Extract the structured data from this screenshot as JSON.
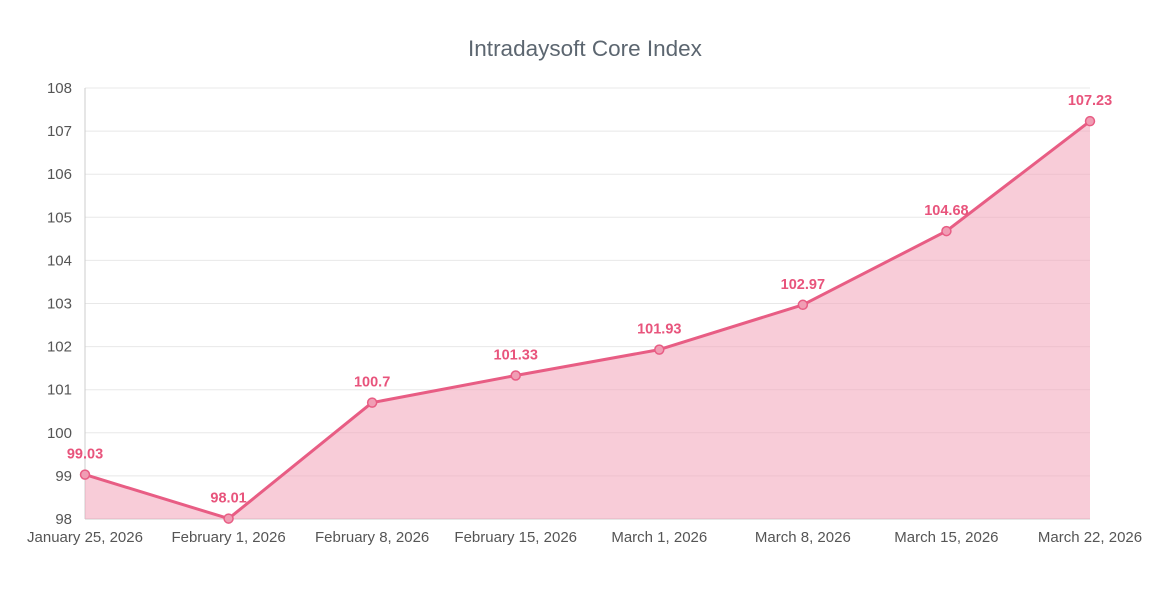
{
  "title": "Intradaysoft Core Index",
  "chart_data": {
    "type": "area",
    "title": "Intradaysoft Core Index",
    "categories": [
      "January 25, 2026",
      "February 1, 2026",
      "February 8, 2026",
      "February 15, 2026",
      "March 1, 2026",
      "March 8, 2026",
      "March 15, 2026",
      "March 22, 2026"
    ],
    "values": [
      99.03,
      98.01,
      100.7,
      101.33,
      101.93,
      102.97,
      104.68,
      107.23
    ],
    "point_labels": [
      "99.03",
      "98.01",
      "100.7",
      "101.33",
      "101.93",
      "102.97",
      "104.68",
      "107.23"
    ],
    "xlabel": "",
    "ylabel": "",
    "ylim": [
      98,
      108
    ],
    "ytick_step": 1,
    "ytick_labels": [
      "98",
      "99",
      "100",
      "101",
      "102",
      "103",
      "104",
      "105",
      "106",
      "107",
      "108"
    ],
    "grid": true,
    "legend": false,
    "colors": {
      "line": "#e85d84",
      "point_fill": "#f09db4",
      "area_fill": "#f2a2b8",
      "area_opacity": 0.55,
      "point_label": "#e8547c",
      "axis_text": "#555555",
      "axis_line": "#cccccc",
      "grid_line": "#e8e8e8",
      "title_text": "#5c6670"
    }
  }
}
